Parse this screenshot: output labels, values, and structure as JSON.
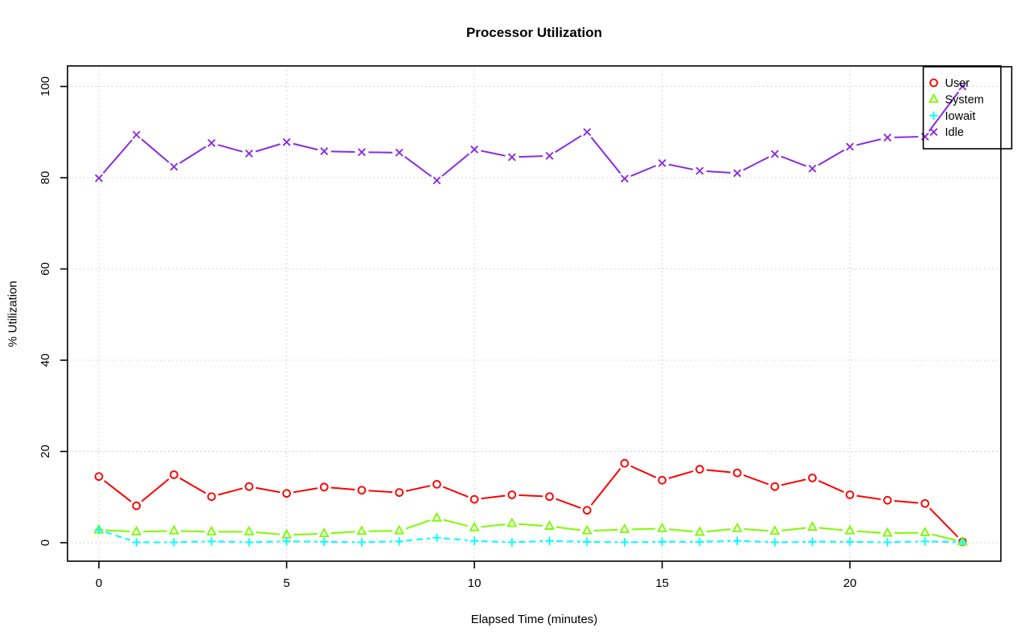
{
  "chart_data": {
    "type": "line",
    "title": "Processor Utilization",
    "xlabel": "Elapsed Time (minutes)",
    "ylabel": "% Utilization",
    "x": [
      0,
      1,
      2,
      3,
      4,
      5,
      6,
      7,
      8,
      9,
      10,
      11,
      12,
      13,
      14,
      15,
      16,
      17,
      18,
      19,
      20,
      21,
      22,
      23
    ],
    "xticks": [
      0,
      5,
      10,
      15,
      20
    ],
    "yticks": [
      0,
      20,
      40,
      60,
      80,
      100
    ],
    "xlim": [
      -0.835,
      24.02
    ],
    "ylim": [
      -4.05,
      104.5
    ],
    "grid": true,
    "grid_color": "#c8c8c8",
    "axis_color": "#000000",
    "legend_position": "top-right",
    "series": [
      {
        "name": "User",
        "color": "#ff0000",
        "marker": "circle",
        "dashed": false,
        "values": [
          14.5,
          8.1,
          14.9,
          10.1,
          12.3,
          10.8,
          12.2,
          11.5,
          11.0,
          12.8,
          9.5,
          10.5,
          10.1,
          7.1,
          17.4,
          13.7,
          16.1,
          15.3,
          12.3,
          14.2,
          10.5,
          9.3,
          8.6,
          0.2
        ]
      },
      {
        "name": "System",
        "color": "#7cfc00",
        "marker": "triangle",
        "dashed": false,
        "values": [
          2.8,
          2.4,
          2.6,
          2.4,
          2.4,
          1.7,
          2.0,
          2.5,
          2.6,
          5.4,
          3.3,
          4.2,
          3.6,
          2.6,
          2.9,
          3.1,
          2.3,
          3.1,
          2.5,
          3.4,
          2.6,
          2.1,
          2.2,
          0.2
        ]
      },
      {
        "name": "Iowait",
        "color": "#00ffff",
        "marker": "plus",
        "dashed": true,
        "values": [
          2.8,
          0.1,
          0.1,
          0.3,
          0.1,
          0.3,
          0.2,
          0.1,
          0.3,
          1.1,
          0.4,
          0.1,
          0.4,
          0.2,
          0.1,
          0.2,
          0.2,
          0.4,
          0.1,
          0.2,
          0.2,
          0.1,
          0.3,
          0.1
        ]
      },
      {
        "name": "Idle",
        "color": "#8a2be2",
        "marker": "x",
        "dashed": false,
        "values": [
          79.9,
          89.4,
          82.4,
          87.6,
          85.3,
          87.8,
          85.8,
          85.6,
          85.5,
          79.4,
          86.2,
          84.5,
          84.8,
          90.0,
          79.8,
          83.2,
          81.5,
          81.0,
          85.2,
          82.0,
          86.8,
          88.8,
          89.0,
          100.0
        ]
      }
    ]
  }
}
